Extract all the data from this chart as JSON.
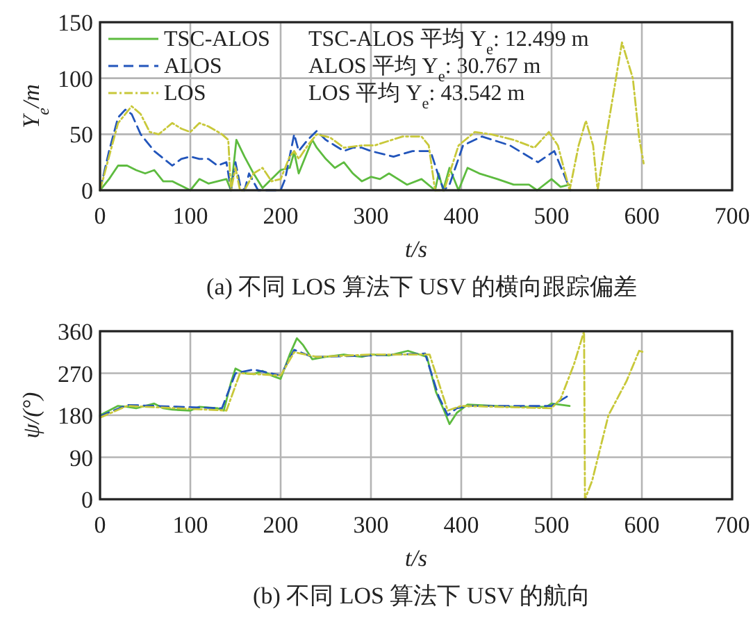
{
  "chart_data": [
    {
      "type": "line",
      "title": "(a) 不同 LOS 算法下 USV 的横向跟踪偏差",
      "xlabel": "t/s",
      "ylabel": "Y$_{e}$/m",
      "xlim": [
        0,
        700
      ],
      "xticks": [
        0,
        100,
        200,
        300,
        400,
        500,
        600,
        700
      ],
      "ylim": [
        0,
        150
      ],
      "yticks": [
        0,
        50,
        100,
        150
      ],
      "grid": true,
      "legend": "top left",
      "annotations": [
        "TSC-ALOS 平均 Y$_{e}$: 12.499 m",
        "ALOS 平均 Y$_{e}$: 30.767 m",
        "LOS 平均 Y$_{e}$: 43.542 m"
      ],
      "series": [
        {
          "name": "TSC-ALOS",
          "color": "#5dbb3f",
          "line_style": "solid",
          "x": [
            0,
            10,
            20,
            30,
            40,
            50,
            60,
            70,
            80,
            90,
            100,
            110,
            120,
            130,
            140,
            145,
            151,
            160,
            170,
            180,
            190,
            200,
            210,
            215,
            220,
            230,
            235,
            240,
            250,
            260,
            270,
            280,
            290,
            300,
            310,
            320,
            340,
            356,
            371,
            375,
            380,
            387,
            397,
            407,
            420,
            440,
            458,
            475,
            484,
            500,
            510,
            520
          ],
          "values": [
            0,
            10,
            22,
            22,
            18,
            15,
            18,
            8,
            8,
            4,
            0,
            10,
            6,
            8,
            10,
            0,
            45,
            30,
            15,
            2,
            10,
            18,
            20,
            34,
            15,
            35,
            45,
            38,
            28,
            20,
            25,
            15,
            8,
            12,
            10,
            15,
            5,
            10,
            0,
            15,
            0,
            20,
            0,
            20,
            15,
            10,
            5,
            5,
            0,
            10,
            3,
            5
          ]
        },
        {
          "name": "ALOS",
          "color": "#2255bb",
          "line_style": "dashed",
          "x": [
            0,
            10,
            20,
            28,
            35,
            45,
            60,
            80,
            90,
            100,
            110,
            120,
            130,
            140,
            145,
            150,
            155,
            160,
            165,
            175,
            185,
            200,
            205,
            215,
            220,
            230,
            240,
            250,
            260,
            270,
            280,
            290,
            300,
            325,
            346,
            366,
            376,
            381,
            387,
            402,
            423,
            454,
            485,
            503,
            521
          ],
          "values": [
            0,
            35,
            65,
            72,
            68,
            50,
            35,
            22,
            28,
            30,
            28,
            28,
            22,
            25,
            0,
            25,
            5,
            0,
            15,
            0,
            0,
            0,
            10,
            50,
            35,
            45,
            53,
            45,
            40,
            35,
            38,
            38,
            35,
            30,
            35,
            35,
            10,
            0,
            5,
            40,
            48,
            40,
            25,
            35,
            0
          ]
        },
        {
          "name": "LOS",
          "color": "#c8c83a",
          "line_style": "dotted",
          "x": [
            0,
            10,
            20,
            35,
            45,
            55,
            65,
            80,
            90,
            100,
            110,
            120,
            135,
            142,
            145,
            150,
            155,
            160,
            170,
            180,
            190,
            200,
            210,
            215,
            220,
            230,
            240,
            255,
            270,
            290,
            304,
            335,
            356,
            364,
            371,
            381,
            389,
            397,
            415,
            433,
            458,
            481,
            497,
            507,
            520,
            530,
            538,
            546,
            551,
            561,
            578,
            590,
            597,
            602
          ],
          "values": [
            0,
            30,
            60,
            75,
            68,
            52,
            50,
            60,
            55,
            52,
            60,
            57,
            50,
            45,
            0,
            20,
            0,
            0,
            15,
            20,
            8,
            10,
            30,
            35,
            28,
            40,
            50,
            47,
            38,
            40,
            40,
            48,
            48,
            40,
            0,
            0,
            20,
            40,
            52,
            50,
            45,
            38,
            52,
            40,
            0,
            40,
            62,
            40,
            0,
            50,
            132,
            100,
            47,
            24
          ]
        }
      ]
    },
    {
      "type": "line",
      "title": "(b) 不同 LOS 算法下 USV 的航向",
      "xlabel": "t/s",
      "ylabel": "ψ/(°)",
      "xlim": [
        0,
        700
      ],
      "xticks": [
        0,
        100,
        200,
        300,
        400,
        500,
        600,
        700
      ],
      "ylim": [
        0,
        360
      ],
      "yticks": [
        0,
        90,
        180,
        270,
        360
      ],
      "grid": true,
      "series": [
        {
          "color": "#5dbb3f",
          "line_style": "solid",
          "x": [
            0,
            10,
            20,
            30,
            40,
            50,
            60,
            70,
            80,
            100,
            110,
            130,
            137,
            145,
            150,
            160,
            170,
            180,
            190,
            200,
            210,
            218,
            225,
            235,
            250,
            270,
            290,
            300,
            320,
            341,
            362,
            372,
            381,
            387,
            395,
            407,
            458,
            494,
            500,
            520
          ],
          "values": [
            180,
            190,
            200,
            198,
            195,
            200,
            205,
            195,
            192,
            190,
            198,
            195,
            190,
            250,
            280,
            270,
            268,
            275,
            265,
            258,
            310,
            345,
            330,
            300,
            305,
            310,
            305,
            310,
            308,
            318,
            305,
            230,
            190,
            161,
            185,
            203,
            198,
            198,
            205,
            200
          ]
        },
        {
          "color": "#2255bb",
          "line_style": "dashed",
          "x": [
            0,
            30,
            135,
            150,
            170,
            200,
            215,
            235,
            300,
            360,
            375,
            385,
            395,
            410,
            500,
            517
          ],
          "values": [
            178,
            202,
            195,
            270,
            278,
            265,
            320,
            305,
            308,
            312,
            220,
            180,
            195,
            200,
            200,
            220
          ]
        },
        {
          "color": "#c8c83a",
          "line_style": "dotted",
          "x": [
            0,
            30,
            140,
            155,
            200,
            215,
            240,
            300,
            365,
            385,
            400,
            500,
            510,
            525,
            536,
            537,
            545,
            563,
            583,
            597,
            602
          ],
          "values": [
            175,
            200,
            190,
            270,
            265,
            315,
            305,
            310,
            310,
            190,
            200,
            195,
            215,
            290,
            360,
            0,
            40,
            180,
            253,
            318,
            315
          ]
        }
      ]
    }
  ]
}
